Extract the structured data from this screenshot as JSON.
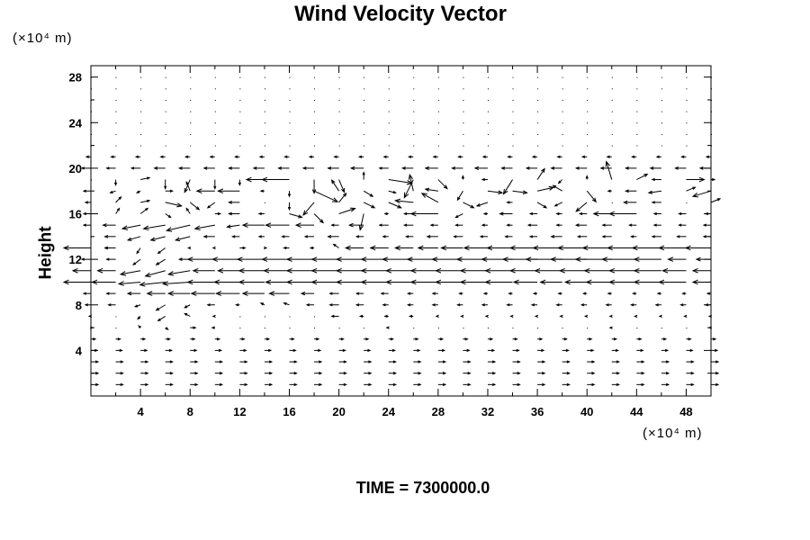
{
  "chart_data": {
    "type": "vector-field",
    "title": "Wind Velocity Vector",
    "ylabel": "Height",
    "x_unit_label": "(×10⁴ m)",
    "y_unit_label": "(×10⁴ m)",
    "footer": "TIME = 7300000.0",
    "xlim": [
      0,
      50
    ],
    "ylim": [
      0,
      29
    ],
    "x_ticks": [
      4,
      8,
      12,
      16,
      20,
      24,
      28,
      32,
      36,
      40,
      44,
      48
    ],
    "y_ticks": [
      4,
      8,
      12,
      16,
      20,
      24,
      28
    ],
    "grid_x": [
      0,
      2,
      4,
      6,
      8,
      10,
      12,
      14,
      16,
      18,
      20,
      22,
      24,
      26,
      28,
      30,
      32,
      34,
      36,
      38,
      40,
      42,
      44,
      46,
      48,
      50
    ],
    "rows": [
      {
        "y": 1,
        "u": 8,
        "v": 0
      },
      {
        "y": 2,
        "u": 8,
        "v": 0
      },
      {
        "y": 3,
        "u": 8,
        "v": 0
      },
      {
        "y": 4,
        "u": 7,
        "v": 0
      },
      {
        "y": 5,
        "u": 5,
        "v": 0
      },
      {
        "y": 6,
        "u": [
          2,
          0,
          -2,
          3,
          6,
          -3,
          0,
          0,
          0,
          0,
          0,
          0,
          -2,
          0,
          0,
          0,
          0,
          0,
          0,
          0,
          0,
          -2,
          0,
          0,
          0,
          -2
        ],
        "v": [
          0,
          0,
          2,
          -2,
          0,
          0,
          0,
          0,
          0,
          0,
          0,
          0,
          0,
          0,
          0,
          0,
          0,
          0,
          0,
          0,
          0,
          0,
          0,
          0,
          0,
          0
        ]
      },
      {
        "y": 7,
        "u": [
          -2,
          0,
          -3,
          -8,
          -6,
          -2,
          0,
          0,
          0,
          0,
          -8,
          -4,
          -4,
          -4,
          -2,
          -2,
          -2,
          -2,
          -2,
          -2,
          -2,
          -2,
          -2,
          -2,
          -2,
          -2
        ],
        "v": [
          0,
          0,
          -3,
          -5,
          3,
          0,
          0,
          0,
          0,
          0,
          0,
          0,
          0,
          0,
          0,
          0,
          0,
          0,
          0,
          0,
          0,
          0,
          0,
          0,
          0,
          0
        ]
      },
      {
        "y": 8,
        "u": [
          -6,
          -8,
          -6,
          -10,
          -6,
          -8,
          -4,
          -4,
          -6,
          -8,
          -10,
          -8,
          -6,
          -6,
          -6,
          -6,
          -6,
          -6,
          -6,
          -6,
          -6,
          -6,
          -6,
          -6,
          -6,
          -6
        ],
        "v": [
          0,
          0,
          -2,
          -6,
          -3,
          0,
          0,
          2,
          2,
          0,
          0,
          0,
          0,
          0,
          0,
          0,
          0,
          0,
          0,
          0,
          0,
          0,
          0,
          0,
          0,
          0
        ]
      },
      {
        "y": 9,
        "u": [
          -8,
          -10,
          -14,
          -20,
          -24,
          -26,
          -26,
          -24,
          -22,
          -14,
          -10,
          -8,
          -8,
          -6,
          -6,
          -4,
          -4,
          -4,
          -4,
          -4,
          -4,
          -4,
          -4,
          -4,
          -4,
          -4
        ],
        "v": 0
      },
      {
        "y": 10,
        "u": [
          -30,
          -26,
          -24,
          -28,
          -30,
          -30,
          -28,
          -28,
          -26,
          -30,
          -30,
          -30,
          -30,
          -30,
          -30,
          -30,
          -30,
          -30,
          -26,
          -24,
          -24,
          -28,
          -30,
          -30,
          -30,
          -20
        ],
        "v": [
          0,
          0,
          -2,
          -3,
          -2,
          0,
          0,
          0,
          0,
          0,
          0,
          0,
          0,
          0,
          0,
          0,
          0,
          0,
          0,
          0,
          0,
          0,
          0,
          0,
          0,
          0
        ]
      },
      {
        "y": 11,
        "u": [
          -20,
          -20,
          -22,
          -22,
          -24,
          -24,
          -24,
          -28,
          -28,
          -30,
          -30,
          -30,
          -30,
          -30,
          -30,
          -30,
          -30,
          -30,
          -30,
          -30,
          -30,
          -30,
          -30,
          -30,
          -26,
          -20
        ],
        "v": [
          0,
          0,
          -4,
          -6,
          -4,
          0,
          0,
          0,
          0,
          0,
          0,
          0,
          0,
          0,
          0,
          0,
          0,
          0,
          0,
          0,
          0,
          0,
          0,
          0,
          0,
          0
        ]
      },
      {
        "y": 12,
        "u": [
          -10,
          -10,
          -8,
          -10,
          -12,
          -30,
          -30,
          -30,
          -30,
          -30,
          -30,
          -30,
          -30,
          -34,
          -34,
          -34,
          -34,
          -34,
          -38,
          -40,
          -40,
          -40,
          -38,
          -30,
          -20,
          -16
        ],
        "v": [
          0,
          0,
          -6,
          -6,
          0,
          0,
          0,
          0,
          0,
          0,
          0,
          0,
          0,
          0,
          0,
          0,
          0,
          0,
          0,
          0,
          0,
          0,
          0,
          0,
          0,
          0
        ]
      },
      {
        "y": 13,
        "u": [
          -30,
          -12,
          -4,
          -8,
          -2,
          -2,
          6,
          2,
          -6,
          -4,
          -6,
          -20,
          -20,
          -20,
          -22,
          -24,
          -26,
          -28,
          -30,
          -32,
          -32,
          -32,
          -32,
          -32,
          -30,
          -28
        ],
        "v": [
          0,
          0,
          -6,
          -6,
          0,
          0,
          0,
          0,
          0,
          0,
          4,
          0,
          0,
          0,
          0,
          0,
          0,
          0,
          0,
          0,
          0,
          0,
          0,
          0,
          0,
          0
        ]
      },
      {
        "y": 14,
        "u": [
          0,
          -12,
          -14,
          -16,
          -16,
          -12,
          -8,
          -6,
          -8,
          -10,
          -12,
          -8,
          -6,
          -8,
          -12,
          -10,
          -8,
          -8,
          -8,
          -12,
          -10,
          -10,
          -6,
          -10,
          -10,
          -8
        ],
        "v": [
          0,
          0,
          -4,
          -4,
          -4,
          0,
          0,
          0,
          0,
          0,
          0,
          0,
          0,
          0,
          0,
          0,
          0,
          0,
          0,
          0,
          0,
          0,
          0,
          0,
          0,
          0
        ]
      },
      {
        "y": 15,
        "u": [
          -8,
          -14,
          -20,
          -24,
          -26,
          -22,
          -14,
          -24,
          -26,
          -20,
          -8,
          -16,
          -10,
          -10,
          -8,
          -8,
          -6,
          -6,
          -10,
          -6,
          -12,
          -10,
          -8,
          -8,
          -8,
          -8
        ],
        "v": [
          0,
          0,
          -4,
          -4,
          -6,
          -4,
          -2,
          0,
          0,
          0,
          0,
          0,
          0,
          0,
          0,
          0,
          0,
          0,
          0,
          0,
          0,
          0,
          0,
          0,
          0,
          0
        ]
      },
      {
        "y": 16,
        "u": [
          -8,
          4,
          8,
          6,
          -4,
          6,
          -12,
          -6,
          14,
          10,
          18,
          -4,
          -4,
          -10,
          -30,
          -8,
          -4,
          -14,
          -8,
          -6,
          -8,
          -20,
          -30,
          -8,
          -8,
          -6
        ],
        "v": [
          0,
          6,
          6,
          -4,
          6,
          0,
          0,
          0,
          -4,
          -10,
          6,
          -18,
          0,
          0,
          0,
          -4,
          0,
          0,
          0,
          0,
          0,
          0,
          0,
          0,
          0,
          0
        ]
      },
      {
        "y": 17,
        "u": [
          -6,
          6,
          10,
          18,
          10,
          -8,
          -12,
          0,
          0,
          -12,
          8,
          12,
          14,
          -20,
          -18,
          12,
          -12,
          -6,
          10,
          -8,
          -12,
          0,
          -14,
          -10,
          0,
          10
        ],
        "v": [
          0,
          6,
          2,
          -4,
          -8,
          -6,
          0,
          0,
          -8,
          -14,
          10,
          -6,
          -6,
          2,
          10,
          -6,
          -4,
          0,
          -6,
          -4,
          -10,
          0,
          0,
          0,
          0,
          4
        ]
      },
      {
        "y": 18,
        "u": [
          -8,
          -6,
          -4,
          8,
          -4,
          -20,
          -24,
          -4,
          0,
          26,
          -8,
          10,
          8,
          -4,
          -14,
          -6,
          16,
          16,
          18,
          -10,
          10,
          -4,
          -12,
          -14,
          10,
          -20
        ],
        "v": [
          0,
          -2,
          -2,
          0,
          10,
          0,
          0,
          0,
          -6,
          -12,
          12,
          -6,
          -2,
          18,
          2,
          -10,
          -2,
          -2,
          4,
          6,
          -12,
          0,
          0,
          -2,
          4,
          -6
        ]
      },
      {
        "y": 19,
        "u": [
          0,
          0,
          10,
          0,
          -6,
          0,
          0,
          -20,
          -30,
          0,
          6,
          0,
          26,
          -10,
          10,
          0,
          -6,
          -10,
          8,
          -4,
          0,
          -6,
          12,
          -10,
          20,
          4
        ],
        "v": [
          0,
          -6,
          2,
          -10,
          -14,
          -10,
          -6,
          0,
          0,
          -15,
          -14,
          8,
          -4,
          -20,
          -10,
          4,
          0,
          -16,
          12,
          -4,
          4,
          20,
          6,
          0,
          0,
          0
        ]
      },
      {
        "y": 20,
        "u": [
          -10,
          -10,
          -10,
          -12,
          -12,
          -12,
          -12,
          -12,
          -12,
          -12,
          -12,
          -14,
          -10,
          -12,
          -14,
          -12,
          -14,
          -12,
          -12,
          -12,
          -12,
          -12,
          -12,
          -12,
          -12,
          -12
        ],
        "v": 0
      },
      {
        "y": 21,
        "u": -5,
        "v": 0
      },
      {
        "y": 22,
        "u": -1,
        "v": 0
      },
      {
        "y": 23,
        "u": -1,
        "v": 0
      },
      {
        "y": 24,
        "u": -1,
        "v": 0
      },
      {
        "y": 25,
        "u": -1,
        "v": 0
      },
      {
        "y": 26,
        "u": -1,
        "v": 0
      },
      {
        "y": 27,
        "u": -1,
        "v": 0
      },
      {
        "y": 28,
        "u": -1,
        "v": 0
      }
    ]
  }
}
